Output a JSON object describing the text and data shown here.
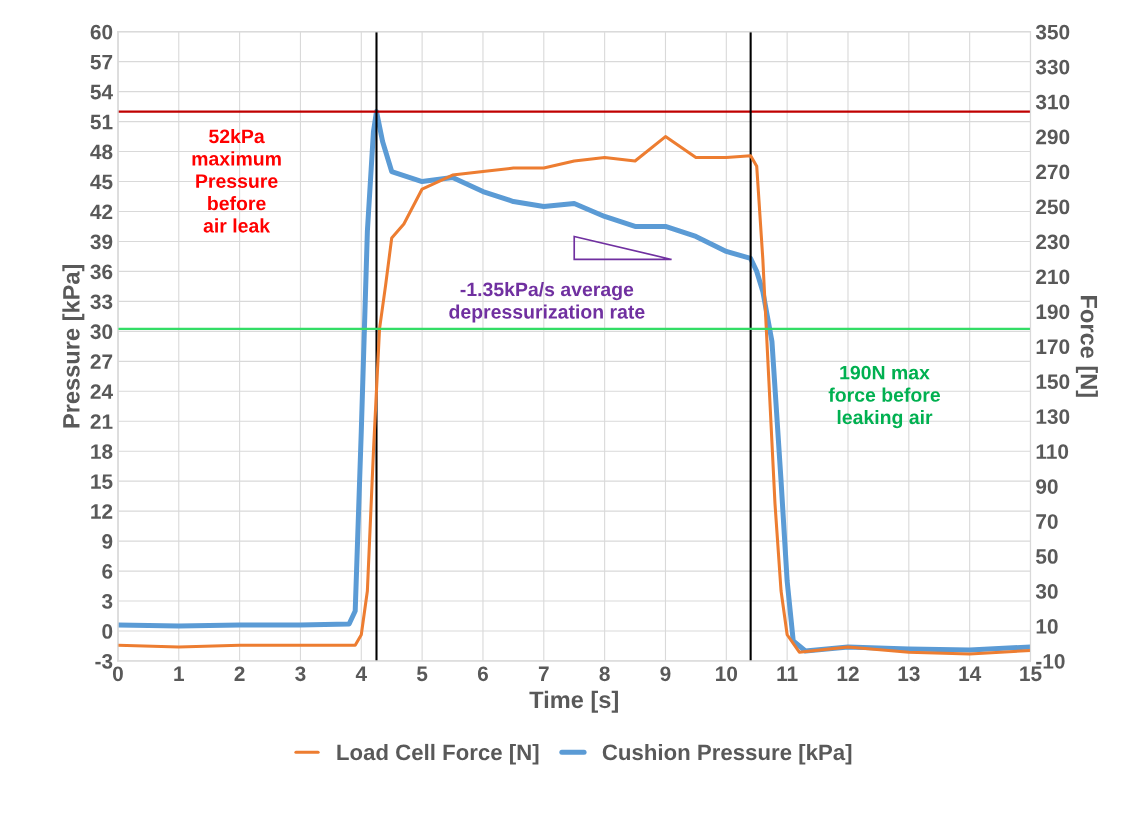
{
  "chart_data": {
    "type": "line",
    "xlabel": "Time [s]",
    "ylabel": "Pressure [kPa]",
    "y2label": "Force [N]",
    "xlim": [
      0,
      15
    ],
    "xticks": [
      0,
      1,
      2,
      3,
      4,
      5,
      6,
      7,
      8,
      9,
      10,
      11,
      12,
      13,
      14,
      15
    ],
    "ylim": [
      -3,
      60
    ],
    "yticks": [
      -3,
      0,
      3,
      6,
      9,
      12,
      15,
      18,
      21,
      24,
      27,
      30,
      33,
      36,
      39,
      42,
      45,
      48,
      51,
      54,
      57,
      60
    ],
    "y2lim": [
      -10,
      350
    ],
    "y2ticks": [
      -10,
      10,
      30,
      50,
      70,
      90,
      110,
      130,
      150,
      170,
      190,
      210,
      230,
      250,
      270,
      290,
      310,
      330,
      350
    ],
    "grid": true,
    "legend": "bottom",
    "line_style": "solid",
    "marker": "none",
    "series": [
      {
        "name": "Load Cell Force [N]",
        "color": "#ed7d31",
        "axis": "y2",
        "x": [
          0,
          1,
          2,
          3,
          3.9,
          4.0,
          4.1,
          4.2,
          4.3,
          4.4,
          4.5,
          4.7,
          5,
          5.5,
          6,
          6.5,
          7,
          7.5,
          8,
          8.5,
          9,
          9.5,
          10,
          10.4,
          10.5,
          10.6,
          10.7,
          10.8,
          10.9,
          11.0,
          11.2,
          12,
          13,
          14,
          15
        ],
        "values": [
          -1,
          -2,
          -1,
          -1,
          -1,
          5,
          30,
          110,
          180,
          205,
          232,
          240,
          260,
          268,
          270,
          272,
          272,
          276,
          278,
          276,
          290,
          278,
          278,
          279,
          273,
          220,
          150,
          80,
          30,
          5,
          -5,
          -2,
          -5,
          -6,
          -4
        ]
      },
      {
        "name": "Cushion Pressure [kPa]",
        "color": "#5b9bd5",
        "x": [
          0,
          1,
          2,
          3,
          3.8,
          3.9,
          4.0,
          4.1,
          4.2,
          4.25,
          4.35,
          4.5,
          5,
          5.5,
          6,
          6.5,
          7,
          7.5,
          8,
          8.5,
          9,
          9.5,
          10,
          10.4,
          10.5,
          10.6,
          10.75,
          10.9,
          11.0,
          11.1,
          11.3,
          12,
          13,
          14,
          15
        ],
        "values": [
          0.6,
          0.5,
          0.6,
          0.6,
          0.7,
          2,
          20,
          40,
          50,
          52,
          49,
          46,
          45,
          45.4,
          44,
          43,
          42.5,
          42.8,
          41.5,
          40.5,
          40.5,
          39.5,
          38,
          37.3,
          36,
          34,
          29,
          15,
          5,
          -1,
          -2,
          -1.6,
          -1.8,
          -1.9,
          -1.6
        ]
      }
    ],
    "ref_lines": [
      {
        "axis": "y",
        "value": 52,
        "color": "#c00000"
      },
      {
        "axis": "y2",
        "value": 180,
        "color": "#33dd66"
      },
      {
        "axis": "x",
        "value": 4.25,
        "color": "#000000"
      },
      {
        "axis": "x",
        "value": 10.4,
        "color": "#000000"
      }
    ],
    "annotations": [
      "52kPa\nmaximum\nPressure\nbefore\nair leak",
      "-1.35kPa/s average\ndepressurization rate",
      "190N max\nforce before\nleaking air"
    ]
  }
}
